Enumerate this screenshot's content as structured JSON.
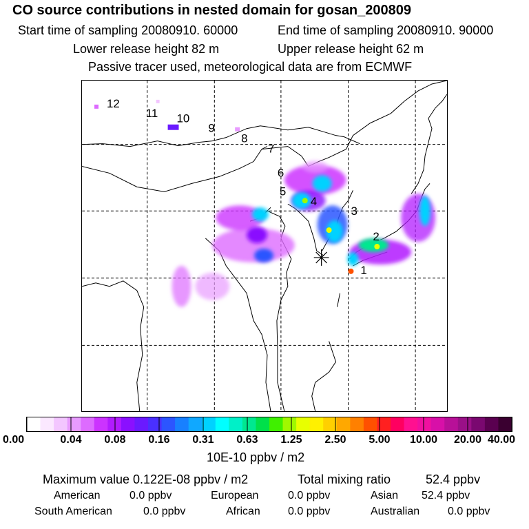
{
  "header": {
    "title": "CO  source contributions in nested domain for gosan_200809",
    "start_label": "Start time of sampling 20080910. 60000",
    "end_label": "End time of sampling 20080910. 90000",
    "lower_label": "Lower release height   82 m",
    "upper_label": "Upper release height   62 m",
    "tracer_label": "Passive tracer used, meteorological data are from ECMWF"
  },
  "map": {
    "trajectory_labels": [
      "1",
      "2",
      "3",
      "4",
      "5",
      "6",
      "7",
      "8",
      "9",
      "10",
      "11",
      "12"
    ],
    "receptor_symbol": "receptor-star"
  },
  "colorbar": {
    "tick_labels": [
      "0.00",
      "0.04",
      "0.08",
      "0.16",
      "0.31",
      "0.63",
      "1.25",
      "2.50",
      "5.00",
      "10.00",
      "20.00",
      "40.00"
    ],
    "unit": "10E-10 ppbv / m2",
    "colors": [
      "#ffffff",
      "#fbe8ff",
      "#f3c6ff",
      "#e89bff",
      "#dd6bff",
      "#cc33ff",
      "#b21bff",
      "#8a10ff",
      "#6a1aff",
      "#4a30ff",
      "#2c55ff",
      "#1880ff",
      "#10a8ff",
      "#00d2ff",
      "#00ffff",
      "#00f0c8",
      "#00e890",
      "#00e04a",
      "#40f000",
      "#a0f800",
      "#e8ff00",
      "#fff000",
      "#ffd000",
      "#ffa800",
      "#ff8000",
      "#ff5000",
      "#ff2020",
      "#ff0060",
      "#ff1090",
      "#f010a0",
      "#d810a8",
      "#b81098",
      "#9a1088",
      "#7a0870",
      "#5a0050",
      "#3a0030"
    ]
  },
  "footer": {
    "max_label": "Maximum value  0.122E-08 ppbv / m2",
    "total_label": "Total mixing ratio",
    "total_value": "52.4 ppbv",
    "regions": [
      {
        "name": "American",
        "value": "0.0 ppbv"
      },
      {
        "name": "European",
        "value": "0.0 ppbv"
      },
      {
        "name": "Asian",
        "value": "52.4 ppbv"
      },
      {
        "name": "South American",
        "value": "0.0 ppbv"
      },
      {
        "name": "African",
        "value": "0.0 ppbv"
      },
      {
        "name": "Australian",
        "value": "0.0 ppbv"
      }
    ]
  }
}
